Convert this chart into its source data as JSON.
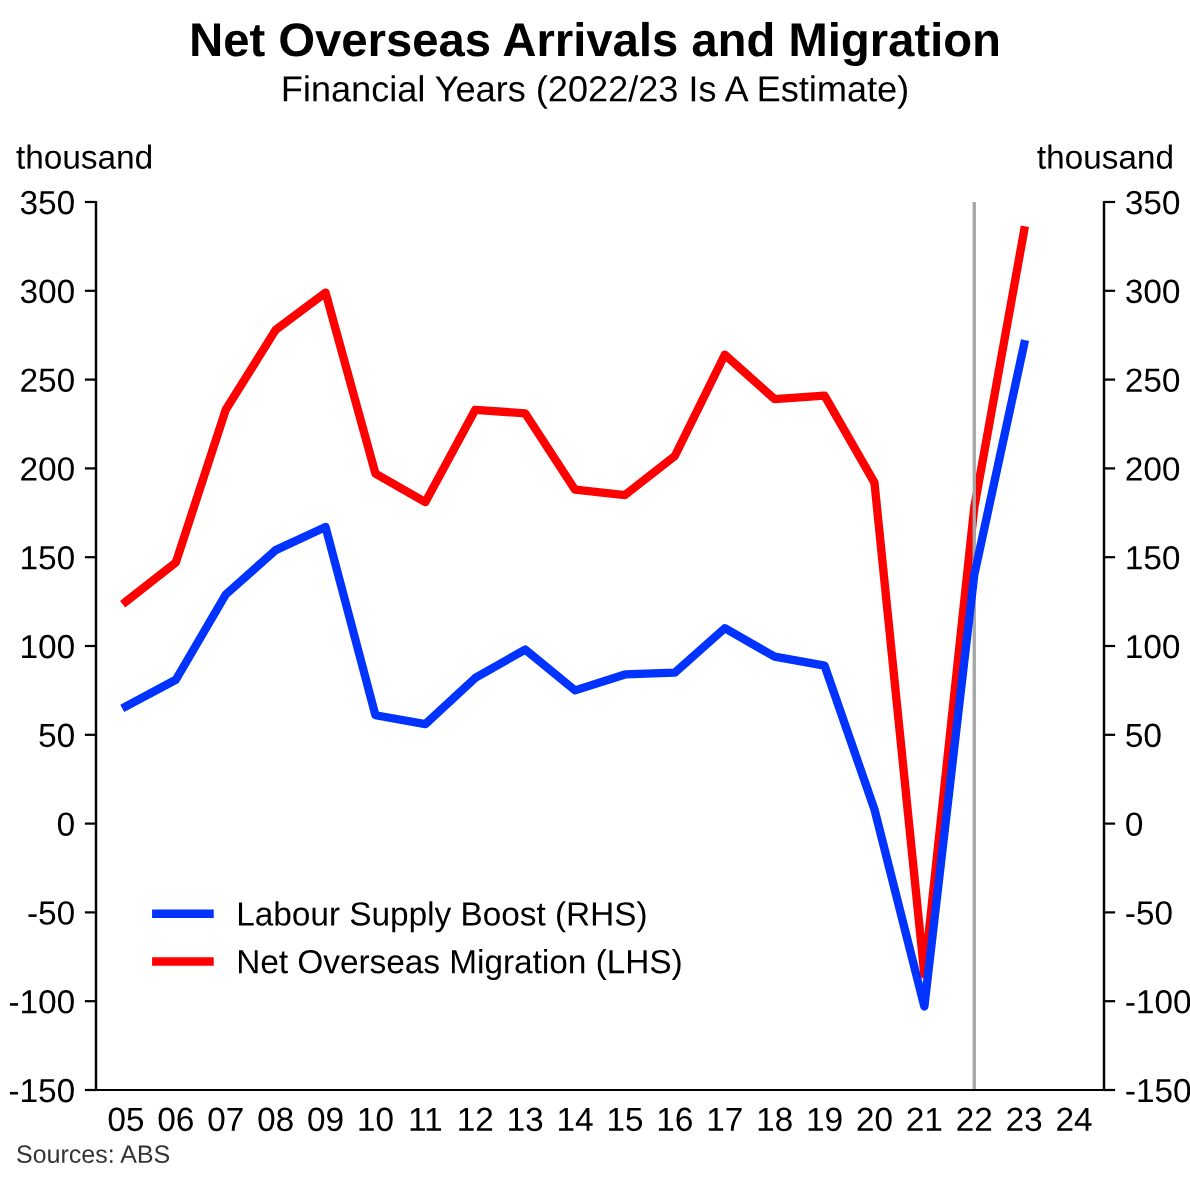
{
  "chart_data": {
    "type": "line",
    "title": "Net Overseas Arrivals and Migration",
    "subtitle": "Financial Years (2022/23 Is A Estimate)",
    "ylabel": "thousand",
    "y2label": "thousand",
    "categories": [
      "05",
      "06",
      "07",
      "08",
      "09",
      "10",
      "11",
      "12",
      "13",
      "14",
      "15",
      "16",
      "17",
      "18",
      "19",
      "20",
      "21",
      "22",
      "23",
      "24"
    ],
    "series": [
      {
        "name": "Labour Supply Boost (RHS)",
        "color": "#0033ff",
        "axis": "y2",
        "values": [
          66,
          81,
          129,
          154,
          167,
          61,
          56,
          82,
          98,
          75,
          84,
          85,
          110,
          94,
          89,
          8,
          -103,
          140,
          270,
          null
        ]
      },
      {
        "name": "Net Overseas Migration (LHS)",
        "color": "#ff0000",
        "values": [
          125,
          147,
          233,
          278,
          299,
          197,
          181,
          233,
          231,
          188,
          185,
          207,
          264,
          239,
          241,
          192,
          -85,
          178,
          334,
          null
        ]
      }
    ],
    "ylim": [
      -150,
      350
    ],
    "yticks": [
      -150,
      -100,
      -50,
      0,
      50,
      100,
      150,
      200,
      250,
      300,
      350
    ],
    "y2lim": [
      -150,
      350
    ],
    "y2ticks": [
      -150,
      -100,
      -50,
      0,
      50,
      100,
      150,
      200,
      250,
      300,
      350
    ],
    "ref_lines": [
      {
        "axis": "x",
        "value": "22",
        "color": "#a6a6a6"
      }
    ],
    "legend": "bottom left",
    "grid": false,
    "marker": "none",
    "line_style": "solid",
    "annotations": [
      "Sources: ABS"
    ]
  }
}
